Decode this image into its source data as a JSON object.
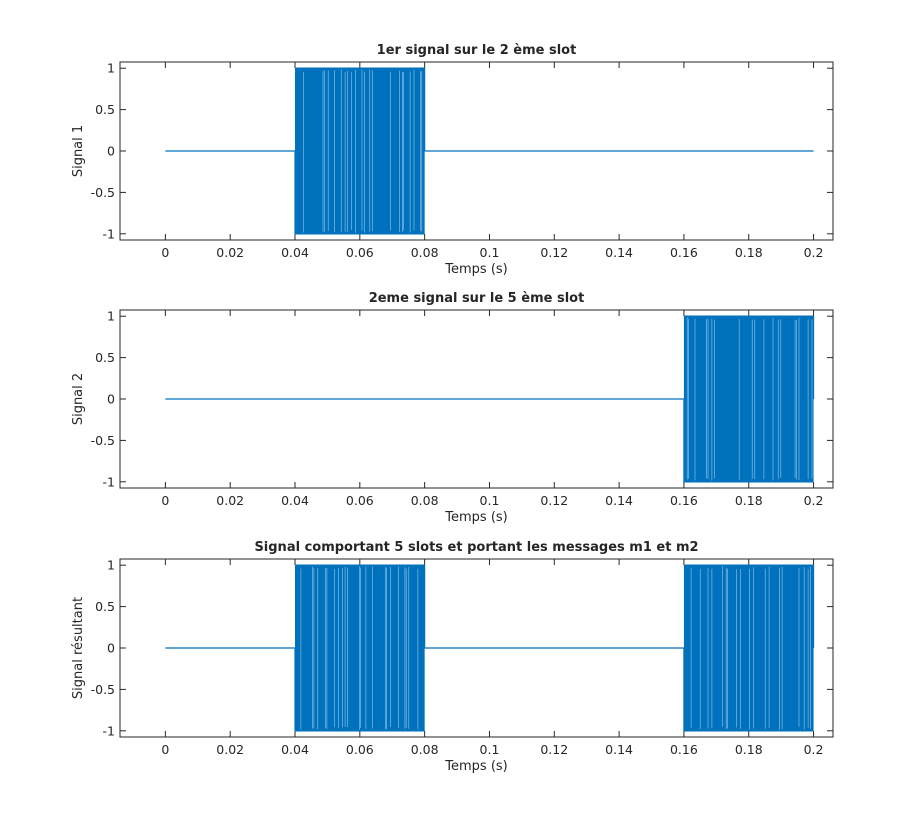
{
  "chart_data": [
    {
      "type": "line",
      "title": "1er signal sur le 2 ème slot",
      "xlabel": "Temps (s)",
      "ylabel": "Signal 1",
      "xlim": [
        -0.014,
        0.206
      ],
      "ylim": [
        -1.075,
        1.075
      ],
      "x_ticks": [
        "0",
        "0.02",
        "0.04",
        "0.06",
        "0.08",
        "0.1",
        "0.12",
        "0.14",
        "0.16",
        "0.18",
        "0.2"
      ],
      "y_ticks": [
        "1",
        "0.5",
        "0",
        "-0.5",
        "-1"
      ],
      "grid": false,
      "color": "#0072BD",
      "series": [
        {
          "segments": [
            {
              "kind": "constant",
              "x": [
                0,
                0.04
              ],
              "value": 0
            },
            {
              "kind": "binary",
              "x": [
                0.04,
                0.08
              ],
              "values": [
                -1,
                1
              ]
            },
            {
              "kind": "constant",
              "x": [
                0.08,
                0.2
              ],
              "value": 0
            }
          ]
        }
      ]
    },
    {
      "type": "line",
      "title": "2eme signal sur le 5 ème slot",
      "xlabel": "Temps (s)",
      "ylabel": "Signal 2",
      "xlim": [
        -0.014,
        0.206
      ],
      "ylim": [
        -1.075,
        1.075
      ],
      "x_ticks": [
        "0",
        "0.02",
        "0.04",
        "0.06",
        "0.08",
        "0.1",
        "0.12",
        "0.14",
        "0.16",
        "0.18",
        "0.2"
      ],
      "y_ticks": [
        "1",
        "0.5",
        "0",
        "-0.5",
        "-1"
      ],
      "grid": false,
      "color": "#0072BD",
      "series": [
        {
          "segments": [
            {
              "kind": "constant",
              "x": [
                0,
                0.16
              ],
              "value": 0
            },
            {
              "kind": "binary",
              "x": [
                0.16,
                0.2
              ],
              "values": [
                -1,
                1
              ]
            }
          ]
        }
      ]
    },
    {
      "type": "line",
      "title": "Signal comportant 5 slots et portant les messages m1 et m2",
      "xlabel": "Temps (s)",
      "ylabel": "Signal résultant",
      "xlim": [
        -0.014,
        0.206
      ],
      "ylim": [
        -1.075,
        1.075
      ],
      "x_ticks": [
        "0",
        "0.02",
        "0.04",
        "0.06",
        "0.08",
        "0.1",
        "0.12",
        "0.14",
        "0.16",
        "0.18",
        "0.2"
      ],
      "y_ticks": [
        "1",
        "0.5",
        "0",
        "-0.5",
        "-1"
      ],
      "grid": false,
      "color": "#0072BD",
      "series": [
        {
          "segments": [
            {
              "kind": "constant",
              "x": [
                0,
                0.04
              ],
              "value": 0
            },
            {
              "kind": "binary",
              "x": [
                0.04,
                0.08
              ],
              "values": [
                -1,
                1
              ]
            },
            {
              "kind": "constant",
              "x": [
                0.08,
                0.16
              ],
              "value": 0
            },
            {
              "kind": "binary",
              "x": [
                0.16,
                0.2
              ],
              "values": [
                -1,
                1
              ]
            }
          ]
        }
      ]
    }
  ]
}
